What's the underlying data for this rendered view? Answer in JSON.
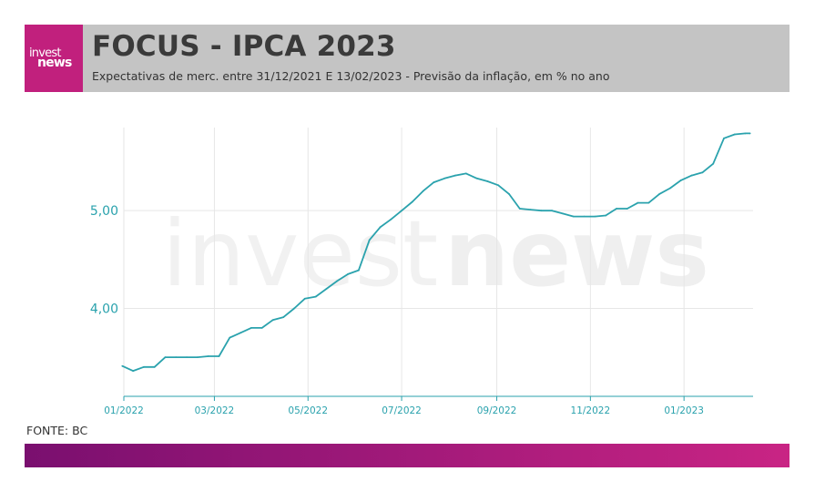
{
  "header": {
    "logo_top": "invest",
    "logo_bottom": "news",
    "title": "FOCUS - IPCA 2023",
    "subtitle": "Expectativas de merc. entre 31/12/2021 E 13/02/2023 - Previsão da inflação, em % no ano"
  },
  "watermark": {
    "left": "invest",
    "right": "news"
  },
  "source": "FONTE: BC",
  "colors": {
    "line": "#2aa2ad",
    "axis": "#2aa2ad",
    "grid": "#e6e6e6",
    "brand": "#c1207d",
    "header_bg": "#c4c4c4"
  },
  "chart_data": {
    "type": "line",
    "title": "FOCUS - IPCA 2023",
    "xlabel": "",
    "ylabel": "",
    "x_ticks": [
      "01/2022",
      "03/2022",
      "05/2022",
      "07/2022",
      "09/2022",
      "11/2022",
      "01/2023"
    ],
    "y_ticks": [
      "4,00",
      "5,00"
    ],
    "ylim": [
      3.1,
      5.85
    ],
    "grid": "vertical",
    "series": [
      {
        "dates": [
          "2021-12-31",
          "2022-01-07",
          "2022-01-14",
          "2022-01-21",
          "2022-01-28",
          "2022-02-04",
          "2022-02-11",
          "2022-02-18",
          "2022-02-25",
          "2022-03-04",
          "2022-03-11",
          "2022-03-18",
          "2022-03-25",
          "2022-04-01",
          "2022-04-08",
          "2022-04-15",
          "2022-04-22",
          "2022-04-29",
          "2022-05-06",
          "2022-05-13",
          "2022-05-20",
          "2022-05-27",
          "2022-06-03",
          "2022-06-10",
          "2022-06-17",
          "2022-06-24",
          "2022-07-01",
          "2022-07-08",
          "2022-07-15",
          "2022-07-22",
          "2022-07-29",
          "2022-08-05",
          "2022-08-12",
          "2022-08-19",
          "2022-08-26",
          "2022-09-02",
          "2022-09-09",
          "2022-09-16",
          "2022-09-23",
          "2022-09-30",
          "2022-10-07",
          "2022-10-14",
          "2022-10-21",
          "2022-10-28",
          "2022-11-04",
          "2022-11-11",
          "2022-11-18",
          "2022-11-25",
          "2022-12-02",
          "2022-12-09",
          "2022-12-16",
          "2022-12-23",
          "2022-12-30",
          "2023-01-06",
          "2023-01-13",
          "2023-01-20",
          "2023-01-27",
          "2023-02-03",
          "2023-02-10",
          "2023-02-13"
        ],
        "values": [
          3.41,
          3.36,
          3.4,
          3.4,
          3.5,
          3.5,
          3.5,
          3.5,
          3.51,
          3.51,
          3.7,
          3.75,
          3.8,
          3.8,
          3.88,
          3.91,
          4.0,
          4.1,
          4.12,
          4.2,
          4.28,
          4.35,
          4.39,
          4.7,
          4.83,
          4.91,
          5.0,
          5.09,
          5.2,
          5.29,
          5.33,
          5.36,
          5.38,
          5.33,
          5.3,
          5.26,
          5.17,
          5.02,
          5.01,
          5.0,
          5.0,
          4.97,
          4.94,
          4.94,
          4.94,
          4.95,
          5.02,
          5.02,
          5.08,
          5.08,
          5.17,
          5.23,
          5.31,
          5.36,
          5.39,
          5.48,
          5.74,
          5.78,
          5.79,
          5.79
        ]
      }
    ]
  }
}
